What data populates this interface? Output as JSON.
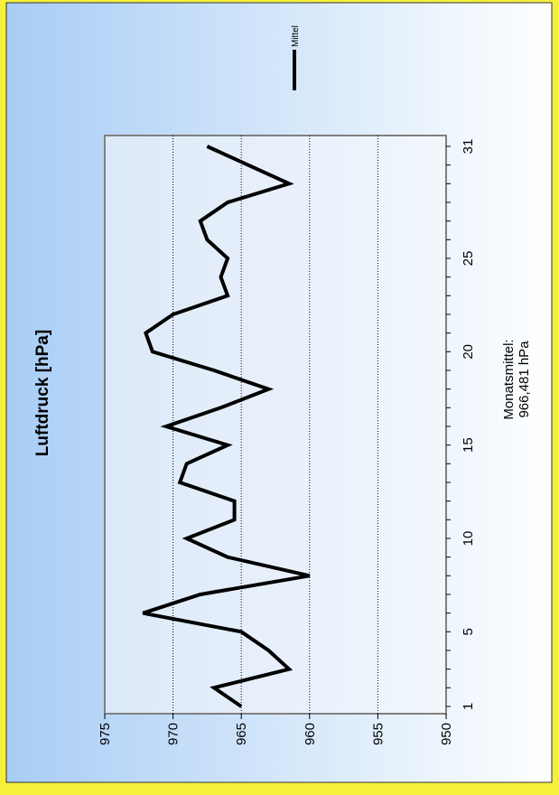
{
  "colors": {
    "border": "#f5f03c",
    "background_top": "#a8cdf5",
    "background_bottom": "#ffffff",
    "plot_background": "#e6f0fa",
    "line": "#000000"
  },
  "chart_data": {
    "type": "line",
    "title": "Luftdruck [hPa]",
    "orientation": "rotated-90-ccw",
    "x_ticks": [
      "1",
      "5",
      "10",
      "15",
      "20",
      "25",
      "31"
    ],
    "xlim": [
      1,
      31
    ],
    "y_ticks": [
      "950",
      "955",
      "960",
      "965",
      "970",
      "975"
    ],
    "ylim": [
      950,
      975
    ],
    "grid": "horizontal-dotted",
    "legend": {
      "position": "top-right",
      "entries": [
        "Mittel"
      ]
    },
    "annotation": [
      "Monatsmittel:",
      "966,481 hPa"
    ],
    "series": [
      {
        "name": "Mittel",
        "x": [
          1,
          2,
          3,
          4,
          5,
          6,
          7,
          8,
          9,
          10,
          11,
          12,
          13,
          14,
          15,
          16,
          17,
          18,
          19,
          20,
          21,
          22,
          23,
          24,
          25,
          26,
          27,
          28,
          29,
          30,
          31
        ],
        "values": [
          965.0,
          967.0,
          961.5,
          963.0,
          965.0,
          972.2,
          968.0,
          960.0,
          966.0,
          969.0,
          965.5,
          965.5,
          969.5,
          969.0,
          966.0,
          970.5,
          966.5,
          963.0,
          967.0,
          971.5,
          972.0,
          970.0,
          966.0,
          966.5,
          966.0,
          967.5,
          968.0,
          966.0,
          961.5,
          964.5,
          967.5
        ]
      }
    ]
  }
}
